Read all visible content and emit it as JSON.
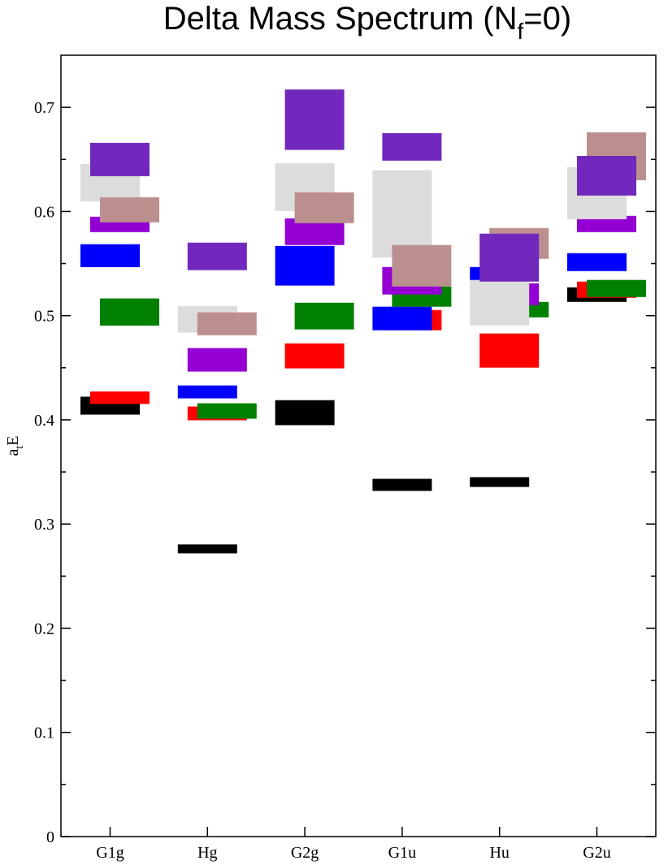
{
  "chart_data": {
    "type": "level-boxes",
    "title": [
      "Delta Mass Spectrum (N",
      "f",
      "=0)"
    ],
    "ylabel": [
      "a",
      "t",
      "E"
    ],
    "categories": [
      "G1g",
      "Hg",
      "G2g",
      "G1u",
      "Hu",
      "G2u"
    ],
    "ylim": [
      0,
      0.75
    ],
    "yticks": [
      0,
      0.1,
      0.2,
      0.3,
      0.4,
      0.5,
      0.6,
      0.7
    ],
    "yminor": [
      0.05,
      0.15,
      0.25,
      0.35,
      0.45,
      0.55,
      0.65
    ],
    "series": [
      {
        "color": "#000000",
        "values": [
          0.4136,
          0.2761,
          0.4069,
          0.3376,
          0.3403,
          0.5202
        ],
        "errors": [
          0.0086,
          0.0043,
          0.012,
          0.0058,
          0.0047,
          0.007
        ]
      },
      {
        "color": "#ff0000",
        "values": [
          0.4213,
          0.4062,
          0.4614,
          0.4957,
          0.4665,
          0.5249
        ],
        "errors": [
          0.006,
          0.0066,
          0.012,
          0.0097,
          0.0164,
          0.0078
        ]
      },
      {
        "color": "#0000ff",
        "values": [
          0.5576,
          0.4268,
          0.5479,
          0.4973,
          0.5401,
          0.5514
        ],
        "errors": [
          0.011,
          0.0062,
          0.019,
          0.0113,
          0.0066,
          0.0086
        ]
      },
      {
        "color": "#008000",
        "values": [
          0.5035,
          0.4085,
          0.4996,
          0.5183,
          0.5058,
          0.5261
        ],
        "errors": [
          0.013,
          0.0074,
          0.0128,
          0.0097,
          0.0074,
          0.0082
        ]
      },
      {
        "color": "#9400d3",
        "values": [
          0.5876,
          0.4576,
          0.5806,
          0.5335,
          0.5206,
          0.588
        ],
        "errors": [
          0.0074,
          0.0113,
          0.0128,
          0.0132,
          0.0105,
          0.0078
        ]
      },
      {
        "color": "#dcdcdc",
        "values": [
          0.6277,
          0.4965,
          0.6234,
          0.5977,
          0.5125,
          0.6176
        ],
        "errors": [
          0.018,
          0.0128,
          0.023,
          0.042,
          0.0218,
          0.025
        ]
      },
      {
        "color": "#bc8f8f",
        "values": [
          0.6016,
          0.4922,
          0.6036,
          0.5479,
          0.5693,
          0.653
        ],
        "errors": [
          0.012,
          0.011,
          0.0148,
          0.0199,
          0.0148,
          0.023
        ]
      },
      {
        "color": "#7228bc",
        "values": [
          0.6499,
          0.5569,
          0.6881,
          0.662,
          0.5557,
          0.6343
        ],
        "errors": [
          0.016,
          0.0132,
          0.029,
          0.0132,
          0.023,
          0.019
        ]
      }
    ]
  }
}
